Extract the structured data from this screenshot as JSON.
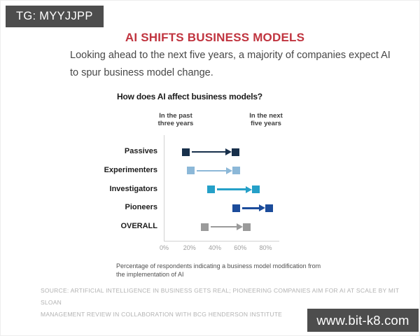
{
  "watermarks": {
    "tg_badge": "TG: MYYJJPP",
    "site_badge": "www.bit-k8.com"
  },
  "header": {
    "title": "AI SHIFTS BUSINESS MODELS",
    "subtitle": "Looking ahead to the next five years, a majority of companies expect AI\nto spur business model change.",
    "title_color": "#c0343f"
  },
  "source": "SOURCE: ARTIFICIAL INTELLIGENCE IN BUSINESS GETS REAL; PIONEERING COMPANIES AIM FOR AI AT SCALE BY MIT SLOAN\nMANAGEMENT REVIEW IN COLLABORATION WITH BCG HENDERSON INSTITUTE",
  "chart_data": {
    "type": "dumbbell-arrow",
    "title": "How does AI affect business models?",
    "categories": [
      "Passives",
      "Experimenters",
      "Investigators",
      "Pioneers",
      "OVERALL"
    ],
    "series": [
      {
        "name": "In the past three years",
        "values": [
          17,
          21,
          37,
          57,
          32
        ]
      },
      {
        "name": "In the next five years",
        "values": [
          56,
          57,
          72,
          83,
          65
        ]
      }
    ],
    "column_headers_wrapped": [
      "In the past\nthree years",
      "In the next\nfive years"
    ],
    "colors": [
      "#18304b",
      "#8cb8d8",
      "#25a0c8",
      "#1c4c9b",
      "#9b9b9b"
    ],
    "x_ticks": [
      0,
      20,
      40,
      60,
      80
    ],
    "x_tick_labels": [
      "0%",
      "20%",
      "40%",
      "60%",
      "80%"
    ],
    "xlim": [
      0,
      90
    ],
    "grid": false,
    "legend_position": "top-columns",
    "arrow_direction": "past-to-next",
    "footnote": "Percentage of respondents indicating a business model modification from\nthe implementation of AI"
  }
}
